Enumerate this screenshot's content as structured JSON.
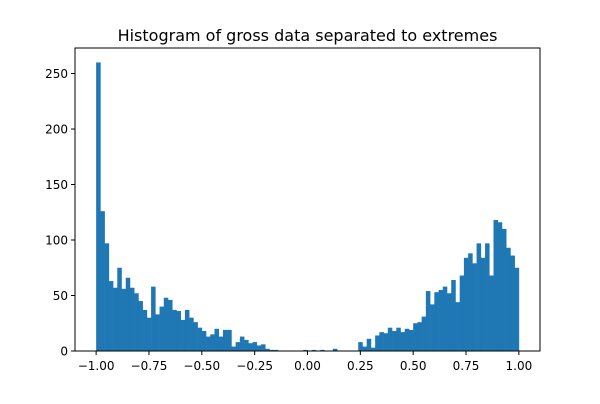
{
  "chart_data": {
    "type": "bar",
    "title": "Histogram of gross data separated to extremes",
    "xlabel": "",
    "ylabel": "",
    "xlim": [
      -1.1,
      1.1
    ],
    "ylim": [
      0,
      273
    ],
    "grid": false,
    "bar_color": "#1f77b4",
    "bin_start": -1.0,
    "bin_width": 0.02,
    "x_ticks": [
      -1.0,
      -0.75,
      -0.5,
      -0.25,
      0.0,
      0.25,
      0.5,
      0.75,
      1.0
    ],
    "x_tick_labels": [
      "−1.00",
      "−0.75",
      "−0.50",
      "−0.25",
      "0.00",
      "0.25",
      "0.50",
      "0.75",
      "1.00"
    ],
    "y_ticks": [
      0,
      50,
      100,
      150,
      200,
      250
    ],
    "y_tick_labels": [
      "0",
      "50",
      "100",
      "150",
      "200",
      "250"
    ],
    "values": [
      260,
      126,
      97,
      63,
      57,
      75,
      56,
      66,
      57,
      52,
      45,
      37,
      30,
      58,
      33,
      40,
      48,
      46,
      37,
      36,
      28,
      37,
      30,
      26,
      21,
      18,
      13,
      15,
      20,
      13,
      19,
      19,
      4,
      8,
      13,
      10,
      7,
      8,
      5,
      6,
      2,
      1,
      1,
      0,
      0,
      0,
      0,
      0,
      0,
      1,
      0,
      1,
      0,
      1,
      0,
      0,
      2,
      0,
      0,
      0,
      0,
      0,
      8,
      4,
      11,
      3,
      14,
      17,
      16,
      21,
      18,
      21,
      17,
      20,
      19,
      25,
      26,
      31,
      54,
      42,
      53,
      55,
      58,
      52,
      64,
      44,
      68,
      84,
      88,
      79,
      97,
      84,
      97,
      68,
      118,
      116,
      110,
      93,
      86,
      75
    ]
  }
}
